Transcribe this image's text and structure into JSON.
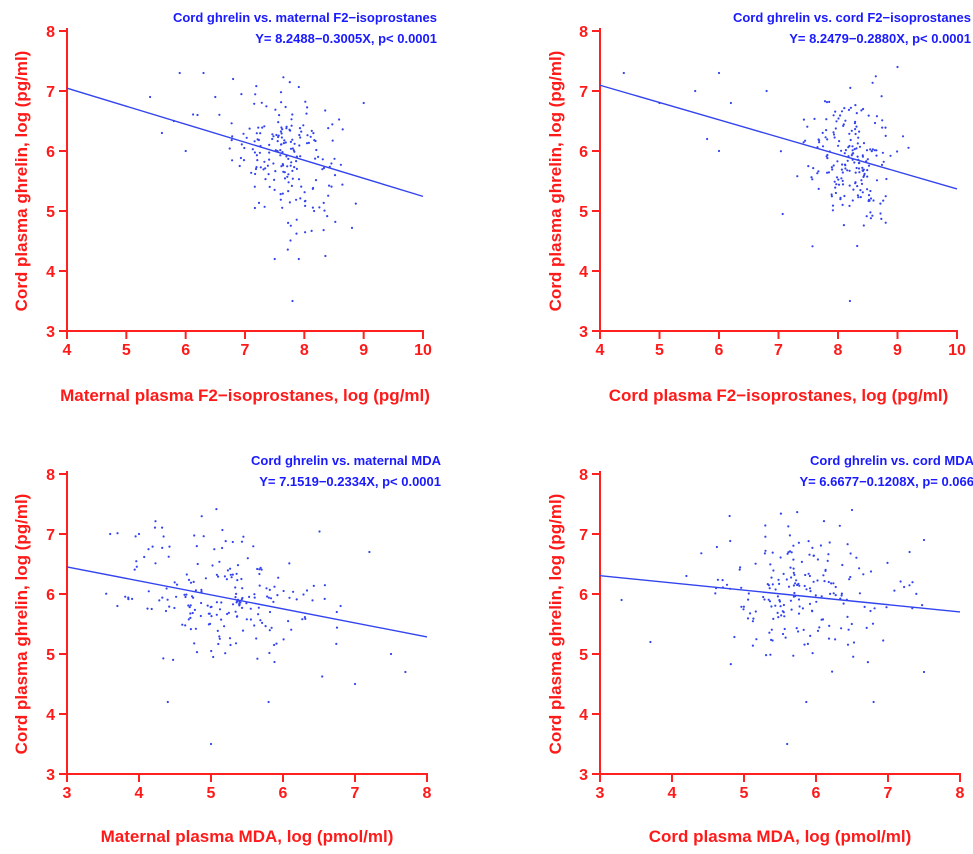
{
  "chart_data": [
    {
      "type": "scatter",
      "title": "Cord ghrelin vs. maternal F2−isoprostanes",
      "equation": "Y= 8.2488−0.3005X,  p< 0.0001",
      "xlabel": "Maternal plasma F2−isoprostanes, log (pg/ml)",
      "ylabel": "Cord plasma ghrelin, log (pg/ml)",
      "xlim": [
        4,
        10
      ],
      "ylim": [
        3,
        8
      ],
      "xticks": [
        4,
        5,
        6,
        7,
        8,
        9,
        10
      ],
      "yticks": [
        3,
        4,
        5,
        6,
        7,
        8
      ],
      "fit": {
        "intercept": 8.2488,
        "slope": -0.3005
      },
      "points": {
        "x_center": 7.7,
        "x_sd": 0.45,
        "n": 200,
        "outliers": [
          [
            5.4,
            6.9
          ],
          [
            5.6,
            6.3
          ],
          [
            5.9,
            7.3
          ],
          [
            6.0,
            6.0
          ],
          [
            6.3,
            7.3
          ],
          [
            6.5,
            6.9
          ],
          [
            6.8,
            7.2
          ],
          [
            9.0,
            6.8
          ],
          [
            7.8,
            3.5
          ],
          [
            7.5,
            4.2
          ],
          [
            5.8,
            6.5
          ],
          [
            6.2,
            6.6
          ]
        ]
      },
      "grid": false
    },
    {
      "type": "scatter",
      "title": "Cord ghrelin vs. cord F2−isoprostanes",
      "equation": "Y= 8.2479−0.2880X,  p< 0.0001",
      "xlabel": "Cord plasma F2−isoprostanes, log (pg/ml)",
      "ylabel": "Cord plasma ghrelin, log (pg/ml)",
      "xlim": [
        4,
        10
      ],
      "ylim": [
        3,
        8
      ],
      "xticks": [
        4,
        5,
        6,
        7,
        8,
        9,
        10
      ],
      "yticks": [
        3,
        4,
        5,
        6,
        7,
        8
      ],
      "fit": {
        "intercept": 8.2479,
        "slope": -0.288
      },
      "points": {
        "x_center": 8.2,
        "x_sd": 0.35,
        "n": 200,
        "outliers": [
          [
            4.4,
            7.3
          ],
          [
            5.0,
            6.8
          ],
          [
            5.6,
            7.0
          ],
          [
            5.8,
            6.2
          ],
          [
            6.0,
            7.3
          ],
          [
            6.2,
            6.8
          ],
          [
            6.8,
            7.0
          ],
          [
            8.2,
            3.5
          ],
          [
            9.0,
            7.4
          ],
          [
            6.0,
            6.0
          ]
        ]
      },
      "grid": false
    },
    {
      "type": "scatter",
      "title": "Cord ghrelin vs. maternal MDA",
      "equation": "Y= 7.1519−0.2334X,  p< 0.0001",
      "xlabel": "Maternal plasma MDA, log (pmol/ml)",
      "ylabel": "Cord plasma ghrelin, log (pg/ml)",
      "xlim": [
        3,
        8
      ],
      "ylim": [
        3,
        8
      ],
      "xticks": [
        3,
        4,
        5,
        6,
        7,
        8
      ],
      "yticks": [
        3,
        4,
        5,
        6,
        7,
        8
      ],
      "fit": {
        "intercept": 7.1519,
        "slope": -0.2334
      },
      "points": {
        "x_center": 5.2,
        "x_sd": 0.7,
        "n": 200,
        "outliers": [
          [
            3.6,
            7.0
          ],
          [
            3.7,
            5.8
          ],
          [
            4.0,
            7.0
          ],
          [
            4.4,
            4.2
          ],
          [
            5.0,
            3.5
          ],
          [
            5.8,
            4.2
          ],
          [
            7.0,
            4.5
          ],
          [
            7.7,
            4.7
          ],
          [
            7.2,
            6.7
          ],
          [
            6.8,
            5.8
          ],
          [
            7.5,
            5.0
          ]
        ]
      },
      "grid": false
    },
    {
      "type": "scatter",
      "title": "Cord ghrelin vs. cord MDA",
      "equation": "Y= 6.6677−0.1208X,  p= 0.066",
      "xlabel": "Cord plasma MDA, log (pmol/ml)",
      "ylabel": "Cord plasma ghrelin, log (pg/ml)",
      "xlim": [
        3,
        8
      ],
      "ylim": [
        3,
        8
      ],
      "xticks": [
        3,
        4,
        5,
        6,
        7,
        8
      ],
      "yticks": [
        3,
        4,
        5,
        6,
        7,
        8
      ],
      "fit": {
        "intercept": 6.6677,
        "slope": -0.1208
      },
      "points": {
        "x_center": 5.8,
        "x_sd": 0.6,
        "n": 200,
        "outliers": [
          [
            3.3,
            5.9
          ],
          [
            3.7,
            5.2
          ],
          [
            4.2,
            6.3
          ],
          [
            5.6,
            3.5
          ],
          [
            7.3,
            6.7
          ],
          [
            7.5,
            6.9
          ],
          [
            7.5,
            4.7
          ],
          [
            6.8,
            4.2
          ],
          [
            4.8,
            7.3
          ],
          [
            6.5,
            7.4
          ]
        ]
      },
      "grid": false
    }
  ]
}
